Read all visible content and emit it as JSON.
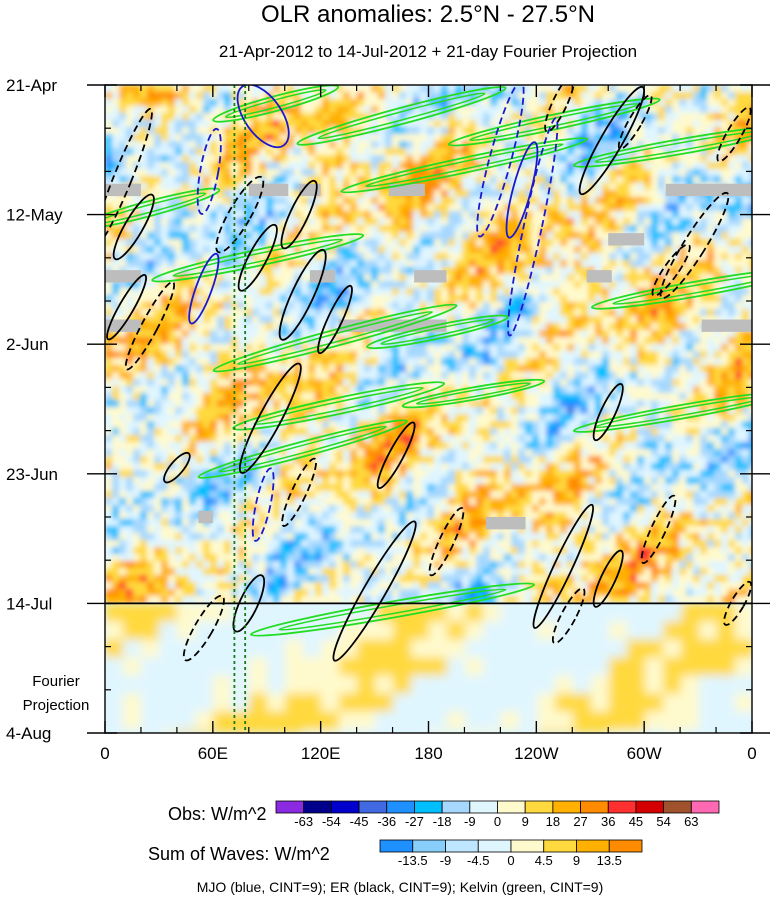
{
  "chart_data": {
    "type": "heatmap",
    "title": "OLR anomalies: 2.5°N - 27.5°N",
    "subtitle": "21-Apr-2012 to 14-Jul-2012 + 21-day Fourier Projection",
    "x_ticks": [
      {
        "label": "0",
        "lon": 0
      },
      {
        "label": "60E",
        "lon": 60
      },
      {
        "label": "120E",
        "lon": 120
      },
      {
        "label": "180",
        "lon": 180
      },
      {
        "label": "120W",
        "lon": 240
      },
      {
        "label": "60W",
        "lon": 300
      },
      {
        "label": "0",
        "lon": 360
      }
    ],
    "xlim": [
      0,
      360
    ],
    "y_ticks": [
      {
        "label": "21-Apr",
        "day": 0
      },
      {
        "label": "12-May",
        "day": 21
      },
      {
        "label": "2-Jun",
        "day": 42
      },
      {
        "label": "23-Jun",
        "day": 63
      },
      {
        "label": "14-Jul",
        "day": 84
      },
      {
        "label": "4-Aug",
        "day": 105
      }
    ],
    "ylim": [
      0,
      105
    ],
    "observed_end_day": 84,
    "projection_label": [
      "Fourier",
      "Projection"
    ],
    "reference_lines_lon": [
      72,
      78
    ],
    "obs_colorbar": {
      "label": "Obs: W/m^2",
      "levels": [
        "-63",
        "-54",
        "-45",
        "-36",
        "-27",
        "-18",
        "-9",
        "0",
        "9",
        "18",
        "27",
        "36",
        "45",
        "54",
        "63"
      ],
      "colors": [
        "#8a2be2",
        "#00008b",
        "#0000cd",
        "#4169e1",
        "#1e90ff",
        "#00bfff",
        "#a6d8ff",
        "#e0f6ff",
        "#fffacd",
        "#ffd93d",
        "#ffb000",
        "#ff8c00",
        "#ff3030",
        "#d40000",
        "#a0522d",
        "#ff69b4"
      ]
    },
    "waves_colorbar": {
      "label": "Sum of Waves: W/m^2",
      "levels": [
        "-13.5",
        "-9",
        "-4.5",
        "0",
        "4.5",
        "9",
        "13.5"
      ],
      "colors": [
        "#1e90ff",
        "#87cefa",
        "#bfe6ff",
        "#e0f6ff",
        "#fffacd",
        "#ffd93d",
        "#ffb000",
        "#ff8c00"
      ]
    },
    "footer": "MJO (blue, CINT=9); ER (black, CINT=9); Kelvin (green, CINT=9)",
    "wave_colors": {
      "mjo": "#1a1acd",
      "er": "#000000",
      "kelvin": "#22dd22",
      "reference": "#1a7a1a"
    },
    "mjo_contours": [
      {
        "lon": 88,
        "day": 5,
        "rx": 10,
        "ry": 3,
        "rot": 55,
        "dash": false
      },
      {
        "lon": 58,
        "day": 14,
        "rx": 2.5,
        "ry": 7,
        "rot": 10,
        "dash": true
      },
      {
        "lon": 55,
        "day": 33,
        "rx": 2.2,
        "ry": 6,
        "rot": 20,
        "dash": false
      },
      {
        "lon": 220,
        "day": 12,
        "rx": 3,
        "ry": 13,
        "rot": 15,
        "dash": true
      },
      {
        "lon": 238,
        "day": 23,
        "rx": 2.5,
        "ry": 18,
        "rot": 12,
        "dash": true
      },
      {
        "lon": 232,
        "day": 17,
        "rx": 2.5,
        "ry": 8,
        "rot": 15,
        "dash": false
      },
      {
        "lon": 88,
        "day": 68,
        "rx": 2,
        "ry": 6,
        "rot": 12,
        "dash": true
      }
    ],
    "er_contours": [
      {
        "lon": 10,
        "day": 15,
        "rx": 2.5,
        "ry": 12,
        "rot": 22,
        "dash": true
      },
      {
        "lon": 16,
        "day": 23,
        "rx": 2.5,
        "ry": 6,
        "rot": 30,
        "dash": false
      },
      {
        "lon": 25,
        "day": 39,
        "rx": 2.2,
        "ry": 8,
        "rot": 28,
        "dash": true
      },
      {
        "lon": 12,
        "day": 36,
        "rx": 2,
        "ry": 6,
        "rot": 30,
        "dash": false
      },
      {
        "lon": 75,
        "day": 21,
        "rx": 3,
        "ry": 7,
        "rot": 30,
        "dash": true
      },
      {
        "lon": 85,
        "day": 28,
        "rx": 2.5,
        "ry": 6,
        "rot": 28,
        "dash": false
      },
      {
        "lon": 108,
        "day": 21,
        "rx": 2.5,
        "ry": 6,
        "rot": 25,
        "dash": false
      },
      {
        "lon": 110,
        "day": 34,
        "rx": 3,
        "ry": 8,
        "rot": 25,
        "dash": false
      },
      {
        "lon": 128,
        "day": 38,
        "rx": 2,
        "ry": 6,
        "rot": 25,
        "dash": false
      },
      {
        "lon": 92,
        "day": 54,
        "rx": 3,
        "ry": 10,
        "rot": 28,
        "dash": false
      },
      {
        "lon": 40,
        "day": 62,
        "rx": 1.8,
        "ry": 3,
        "rot": 40,
        "dash": false
      },
      {
        "lon": 108,
        "day": 66,
        "rx": 2,
        "ry": 6,
        "rot": 25,
        "dash": true
      },
      {
        "lon": 55,
        "day": 88,
        "rx": 2.5,
        "ry": 6,
        "rot": 30,
        "dash": true
      },
      {
        "lon": 80,
        "day": 84,
        "rx": 2.5,
        "ry": 5,
        "rot": 25,
        "dash": false
      },
      {
        "lon": 150,
        "day": 82,
        "rx": 3,
        "ry": 13,
        "rot": 30,
        "dash": false
      },
      {
        "lon": 162,
        "day": 60,
        "rx": 2,
        "ry": 6,
        "rot": 28,
        "dash": false
      },
      {
        "lon": 190,
        "day": 74,
        "rx": 2,
        "ry": 6,
        "rot": 25,
        "dash": true
      },
      {
        "lon": 253,
        "day": 3,
        "rx": 2,
        "ry": 5,
        "rot": 25,
        "dash": true
      },
      {
        "lon": 282,
        "day": 9,
        "rx": 3,
        "ry": 10,
        "rot": 30,
        "dash": false
      },
      {
        "lon": 295,
        "day": 6,
        "rx": 1.8,
        "ry": 5,
        "rot": 30,
        "dash": true
      },
      {
        "lon": 328,
        "day": 26,
        "rx": 3,
        "ry": 10,
        "rot": 32,
        "dash": true
      },
      {
        "lon": 315,
        "day": 30,
        "rx": 2,
        "ry": 5,
        "rot": 35,
        "dash": true
      },
      {
        "lon": 280,
        "day": 53,
        "rx": 2,
        "ry": 5,
        "rot": 25,
        "dash": false
      },
      {
        "lon": 255,
        "day": 78,
        "rx": 2.5,
        "ry": 11,
        "rot": 25,
        "dash": false
      },
      {
        "lon": 258,
        "day": 86,
        "rx": 2,
        "ry": 5,
        "rot": 28,
        "dash": true
      },
      {
        "lon": 280,
        "day": 80,
        "rx": 2,
        "ry": 5,
        "rot": 25,
        "dash": false
      },
      {
        "lon": 308,
        "day": 72,
        "rx": 2,
        "ry": 6,
        "rot": 25,
        "dash": true
      },
      {
        "lon": 352,
        "day": 84,
        "rx": 1.8,
        "ry": 4,
        "rot": 30,
        "dash": true
      },
      {
        "lon": 350,
        "day": 8,
        "rx": 2,
        "ry": 5,
        "rot": 30,
        "dash": true
      }
    ],
    "kelvin_contours": [
      {
        "lon": 95,
        "day": 3,
        "rx": 18,
        "ry": 1.2,
        "rot": -15
      },
      {
        "lon": 165,
        "day": 5,
        "rx": 30,
        "ry": 1.3,
        "rot": -15
      },
      {
        "lon": 200,
        "day": 13,
        "rx": 35,
        "ry": 1.2,
        "rot": -12
      },
      {
        "lon": 25,
        "day": 20,
        "rx": 20,
        "ry": 1.2,
        "rot": -15
      },
      {
        "lon": 85,
        "day": 28,
        "rx": 30,
        "ry": 1.3,
        "rot": -12
      },
      {
        "lon": 128,
        "day": 41,
        "rx": 35,
        "ry": 1.3,
        "rot": -15
      },
      {
        "lon": 185,
        "day": 40,
        "rx": 20,
        "ry": 1.1,
        "rot": -12
      },
      {
        "lon": 130,
        "day": 52,
        "rx": 30,
        "ry": 1.3,
        "rot": -12
      },
      {
        "lon": 110,
        "day": 59,
        "rx": 30,
        "ry": 1.2,
        "rot": -15
      },
      {
        "lon": 160,
        "day": 85,
        "rx": 40,
        "ry": 1.3,
        "rot": -10
      },
      {
        "lon": 250,
        "day": 6,
        "rx": 30,
        "ry": 1.2,
        "rot": -12
      },
      {
        "lon": 320,
        "day": 10,
        "rx": 30,
        "ry": 1.2,
        "rot": -10
      },
      {
        "lon": 330,
        "day": 33,
        "rx": 30,
        "ry": 1.2,
        "rot": -10
      },
      {
        "lon": 320,
        "day": 53,
        "rx": 30,
        "ry": 1.1,
        "rot": -10
      },
      {
        "lon": 205,
        "day": 50,
        "rx": 20,
        "ry": 1.0,
        "rot": -10
      }
    ],
    "missing_data": [
      {
        "lon0": 0,
        "lon1": 20,
        "day0": 16,
        "day1": 18
      },
      {
        "lon0": 80,
        "lon1": 102,
        "day0": 16,
        "day1": 18
      },
      {
        "lon0": 108,
        "lon1": 120,
        "day0": 16,
        "day1": 18
      },
      {
        "lon0": 158,
        "lon1": 178,
        "day0": 16,
        "day1": 18
      },
      {
        "lon0": 312,
        "lon1": 360,
        "day0": 16,
        "day1": 18
      },
      {
        "lon0": 280,
        "lon1": 300,
        "day0": 24,
        "day1": 26
      },
      {
        "lon0": 114,
        "lon1": 128,
        "day0": 30,
        "day1": 32
      },
      {
        "lon0": 172,
        "lon1": 190,
        "day0": 30,
        "day1": 32
      },
      {
        "lon0": 0,
        "lon1": 20,
        "day0": 30,
        "day1": 32
      },
      {
        "lon0": 268,
        "lon1": 282,
        "day0": 30,
        "day1": 32
      },
      {
        "lon0": 0,
        "lon1": 20,
        "day0": 38,
        "day1": 40
      },
      {
        "lon0": 130,
        "lon1": 190,
        "day0": 38,
        "day1": 40
      },
      {
        "lon0": 332,
        "lon1": 360,
        "day0": 38,
        "day1": 40
      },
      {
        "lon0": 52,
        "lon1": 60,
        "day0": 69,
        "day1": 71
      },
      {
        "lon0": 212,
        "lon1": 234,
        "day0": 70,
        "day1": 72
      }
    ]
  }
}
